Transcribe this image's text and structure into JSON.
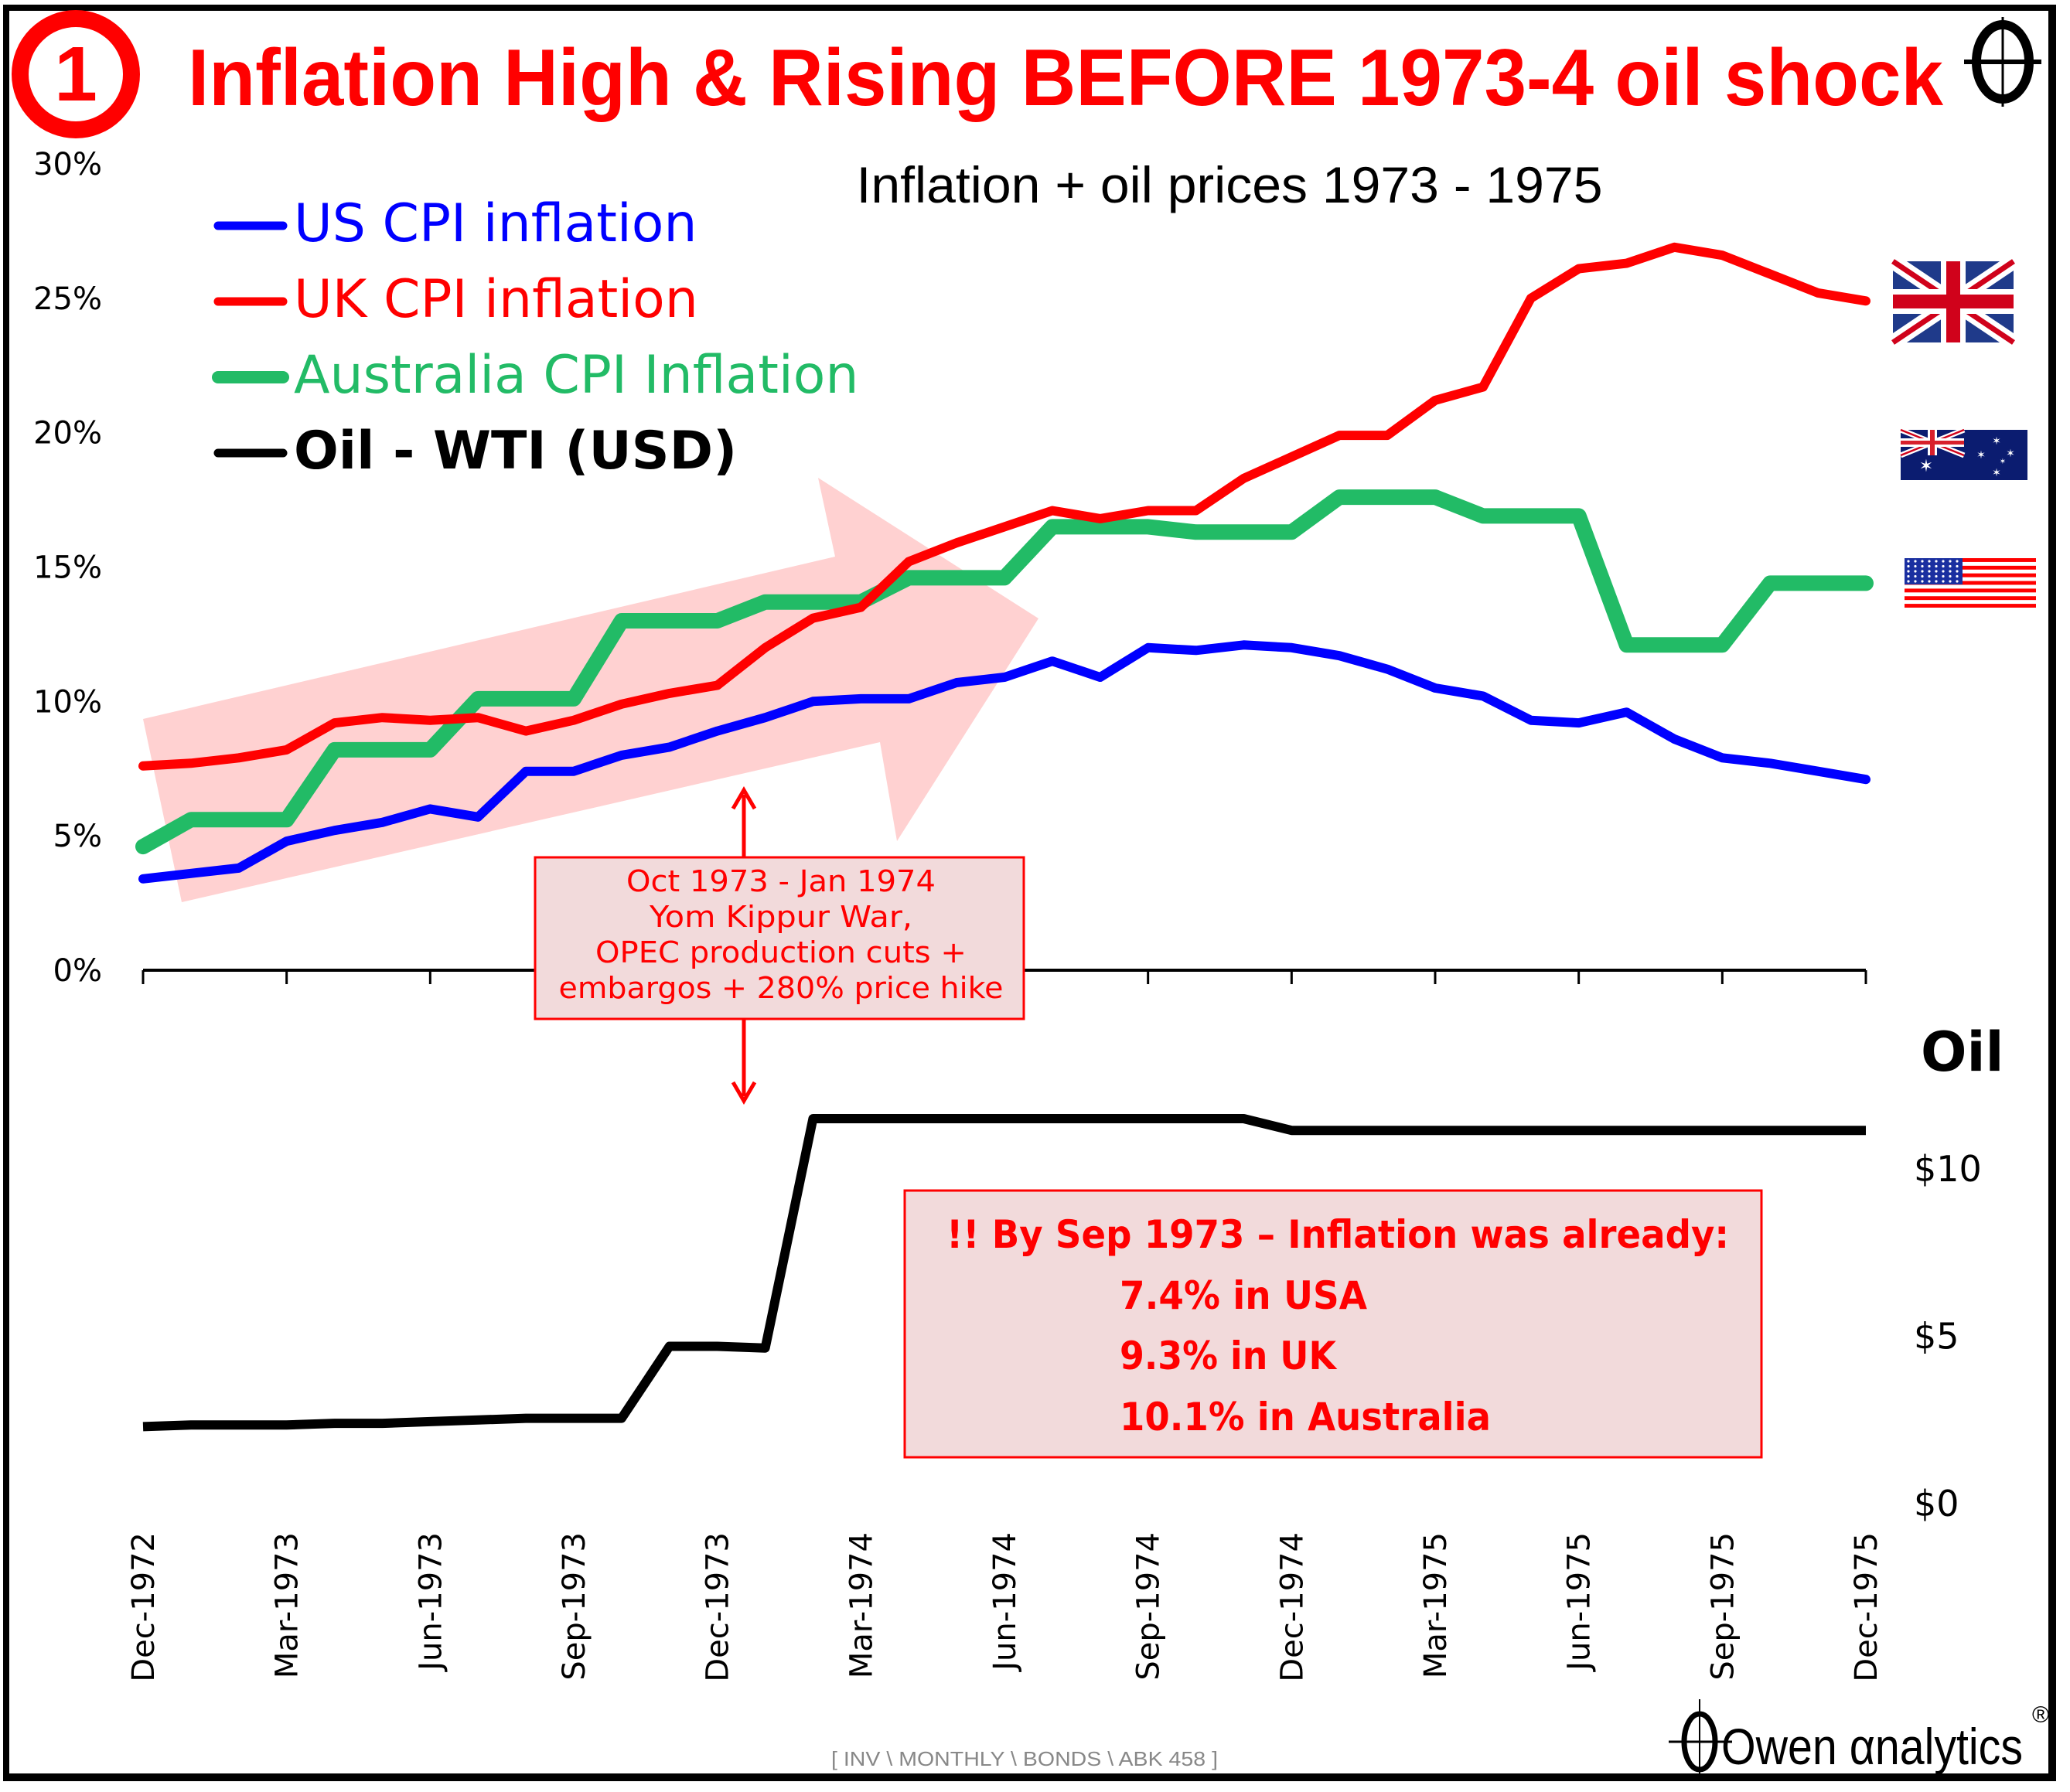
{
  "header": {
    "badge_number": "1",
    "title": "Inflation High & Rising BEFORE 1973-4 oil shock",
    "title_color": "#FF0000"
  },
  "footer": {
    "reference": "[ INV \\ MONTHLY \\ BONDS \\ ABK 458 ]",
    "brand": "Owen αnalytics",
    "brand_mark": "®"
  },
  "flags": [
    {
      "name": "uk-flag",
      "country": "UK"
    },
    {
      "name": "australia-flag",
      "country": "Australia"
    },
    {
      "name": "usa-flag",
      "country": "USA"
    }
  ],
  "annotations": {
    "event_box": [
      "Oct 1973 - Jan 1974",
      "Yom Kippur War,",
      "OPEC production cuts +",
      "embargos + 280% price hike"
    ],
    "summary_box": [
      "!! By Sep 1973 – Inflation was already:",
      "7.4% in USA",
      "9.3% in UK",
      "10.1% in Australia"
    ],
    "trend_arrow": "rising-trend"
  },
  "chart_data": [
    {
      "type": "line",
      "title": "Inflation + oil prices 1973 - 1975",
      "xlabel": "",
      "ylabel": "",
      "ylim": [
        0,
        30
      ],
      "yticks": [
        "0%",
        "5%",
        "10%",
        "15%",
        "20%",
        "25%",
        "30%"
      ],
      "ytick_values": [
        0,
        5,
        10,
        15,
        20,
        25,
        30
      ],
      "x": [
        "Dec-1972",
        "Jan-1973",
        "Feb-1973",
        "Mar-1973",
        "Apr-1973",
        "May-1973",
        "Jun-1973",
        "Jul-1973",
        "Aug-1973",
        "Sep-1973",
        "Oct-1973",
        "Nov-1973",
        "Dec-1973",
        "Jan-1974",
        "Feb-1974",
        "Mar-1974",
        "Apr-1974",
        "May-1974",
        "Jun-1974",
        "Jul-1974",
        "Aug-1974",
        "Sep-1974",
        "Oct-1974",
        "Nov-1974",
        "Dec-1974",
        "Jan-1975",
        "Feb-1975",
        "Mar-1975",
        "Apr-1975",
        "May-1975",
        "Jun-1975",
        "Jul-1975",
        "Aug-1975",
        "Sep-1975",
        "Oct-1975",
        "Nov-1975",
        "Dec-1975"
      ],
      "xticks": [
        "Dec-1972",
        "Mar-1973",
        "Jun-1973",
        "Sep-1973",
        "Dec-1973",
        "Mar-1974",
        "Jun-1974",
        "Sep-1974",
        "Dec-1974",
        "Mar-1975",
        "Jun-1975",
        "Sep-1975",
        "Dec-1975"
      ],
      "grid": false,
      "legend_position": "top-left",
      "series": [
        {
          "name": "US CPI inflation",
          "color": "#0000FF",
          "values": [
            3.4,
            3.6,
            3.8,
            4.8,
            5.2,
            5.5,
            6.0,
            5.7,
            7.4,
            7.4,
            8.0,
            8.3,
            8.9,
            9.4,
            10.0,
            10.1,
            10.1,
            10.7,
            10.9,
            11.5,
            10.9,
            12.0,
            11.9,
            12.1,
            12.0,
            11.7,
            11.2,
            10.5,
            10.2,
            9.3,
            9.2,
            9.6,
            8.6,
            7.9,
            7.7,
            7.4,
            7.1
          ]
        },
        {
          "name": "UK CPI inflation",
          "color": "#FF0000",
          "values": [
            7.6,
            7.7,
            7.9,
            8.2,
            9.2,
            9.4,
            9.3,
            9.4,
            8.9,
            9.3,
            9.9,
            10.3,
            10.6,
            12.0,
            13.1,
            13.5,
            15.2,
            15.9,
            16.5,
            17.1,
            16.8,
            17.1,
            17.1,
            18.3,
            19.1,
            19.9,
            19.9,
            21.2,
            21.7,
            25.0,
            26.1,
            26.3,
            26.9,
            26.6,
            25.9,
            25.2,
            24.9
          ]
        },
        {
          "name": "Australia CPI Inflation",
          "color": "#22BB66",
          "values": [
            4.6,
            5.6,
            5.6,
            5.6,
            8.2,
            8.2,
            8.2,
            10.1,
            10.1,
            10.1,
            13.0,
            13.0,
            13.0,
            13.7,
            13.7,
            13.7,
            14.6,
            14.6,
            14.6,
            16.5,
            16.5,
            16.5,
            16.3,
            16.3,
            16.3,
            17.6,
            17.6,
            17.6,
            16.9,
            16.9,
            16.9,
            12.1,
            12.1,
            12.1,
            14.4,
            14.4,
            14.4
          ]
        }
      ]
    },
    {
      "type": "line",
      "title": "Oil",
      "ylabel": "Oil",
      "ylim": [
        0,
        12
      ],
      "yticks": [
        "$0",
        "$5",
        "$10"
      ],
      "ytick_values": [
        0,
        5,
        10
      ],
      "series": [
        {
          "name": "Oil - WTI (USD)",
          "color": "#000000",
          "values": [
            2.3,
            2.35,
            2.35,
            2.35,
            2.4,
            2.4,
            2.45,
            2.5,
            2.55,
            2.55,
            2.55,
            4.7,
            4.7,
            4.65,
            11.5,
            11.5,
            11.5,
            11.5,
            11.5,
            11.5,
            11.5,
            11.5,
            11.5,
            11.5,
            11.15,
            11.15,
            11.15,
            11.15,
            11.15,
            11.15,
            11.15,
            11.15,
            11.15,
            11.15,
            11.15,
            11.15,
            11.15
          ]
        }
      ]
    }
  ]
}
